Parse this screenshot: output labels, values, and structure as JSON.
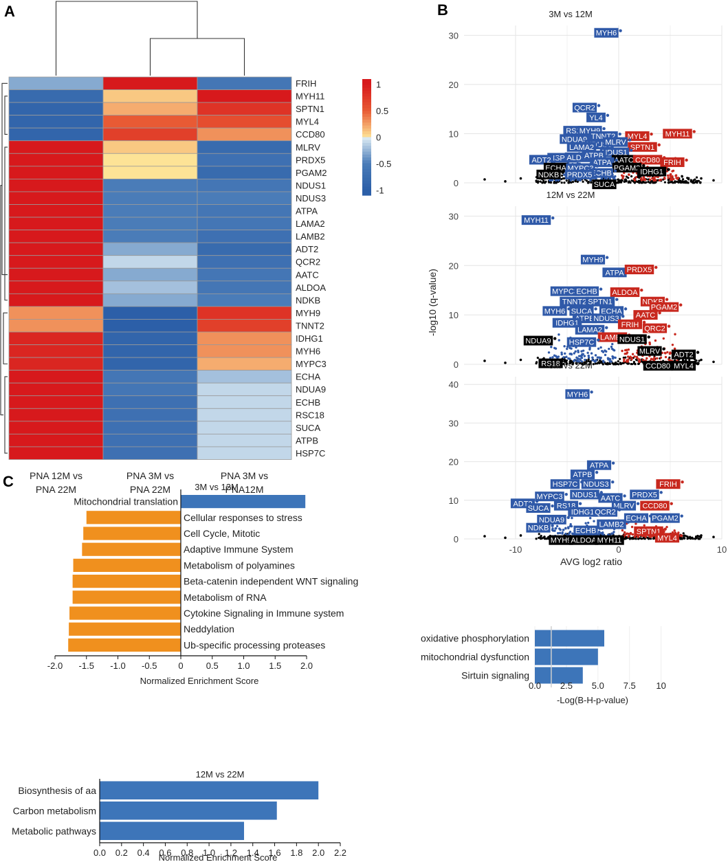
{
  "panel_letters": {
    "a": "A",
    "b": "B",
    "c": "C"
  },
  "colors": {
    "heat_high": "#d7191c",
    "heat_mid": "#ffffbf",
    "heat_low": "#2c5fa8",
    "volcano_up": "#c8281e",
    "volcano_down": "#2f59a8",
    "volcano_ns": "#000000",
    "nes_positive": "#3d75b9",
    "nes_negative": "#f0901e"
  },
  "chart_data": [
    {
      "id": "heatmap",
      "type": "heatmap",
      "title": "",
      "rows": [
        "FRIH",
        "MYH11",
        "SPTN1",
        "MYL4",
        "CCD80",
        "MLRV",
        "PRDX5",
        "PGAM2",
        "NDUS1",
        "NDUS3",
        "ATPA",
        "LAMA2",
        "LAMB2",
        "ADT2",
        "QCR2",
        "AATC",
        "ALDOA",
        "NDKB",
        "MYH9",
        "TNNT2",
        "IDHG1",
        "MYH6",
        "MYPC3",
        "ECHA",
        "NDUA9",
        "ECHB",
        "RSC18",
        "SUCA",
        "ATPB",
        "HSP7C"
      ],
      "columns": [
        {
          "l1": "PNA 12M vs",
          "l2": "PNA 22M"
        },
        {
          "l1": "PNA 3M vs",
          "l2": "PNA 22M"
        },
        {
          "l1": "PNA 3M vs",
          "l2": "PNA12M"
        }
      ],
      "values": [
        [
          -0.3,
          1.0,
          -0.6
        ],
        [
          -0.8,
          0.1,
          1.0
        ],
        [
          -0.9,
          0.2,
          0.8
        ],
        [
          -0.9,
          0.5,
          0.6
        ],
        [
          -0.9,
          0.7,
          0.3
        ],
        [
          1.0,
          0.1,
          -0.8
        ],
        [
          1.0,
          0.0,
          -0.7
        ],
        [
          1.0,
          0.0,
          -0.8
        ],
        [
          1.0,
          -0.5,
          -0.6
        ],
        [
          1.0,
          -0.5,
          -0.5
        ],
        [
          1.0,
          -0.5,
          -0.6
        ],
        [
          1.0,
          -0.5,
          -0.6
        ],
        [
          1.0,
          -0.5,
          -0.7
        ],
        [
          1.0,
          -0.3,
          -0.8
        ],
        [
          1.0,
          -0.1,
          -0.7
        ],
        [
          1.0,
          -0.3,
          -0.6
        ],
        [
          1.0,
          -0.2,
          -0.6
        ],
        [
          1.0,
          -0.3,
          -0.5
        ],
        [
          0.3,
          -1.0,
          0.8
        ],
        [
          0.3,
          -1.0,
          0.7
        ],
        [
          0.9,
          -0.9,
          0.3
        ],
        [
          0.9,
          -0.9,
          0.3
        ],
        [
          0.9,
          -0.9,
          0.2
        ],
        [
          1.0,
          -0.6,
          -0.2
        ],
        [
          1.0,
          -0.6,
          -0.1
        ],
        [
          1.0,
          -0.7,
          -0.1
        ],
        [
          1.0,
          -0.7,
          -0.1
        ],
        [
          1.0,
          -0.7,
          -0.1
        ],
        [
          1.0,
          -0.7,
          -0.1
        ],
        [
          1.0,
          -0.7,
          -0.1
        ]
      ],
      "colorbar": {
        "ticks": [
          "1",
          "0.5",
          "0",
          "-0.5",
          "-1"
        ],
        "tick_values": [
          1,
          0.5,
          0,
          -0.5,
          -1
        ],
        "range": [
          -1.1,
          1.1
        ]
      }
    },
    {
      "id": "volcano",
      "type": "scatter",
      "xlabel": "AVG log2 ratio",
      "ylabel": "-log10 (q-value)",
      "xlim": [
        -15,
        10
      ],
      "x_ticks": [
        -10,
        0,
        10
      ],
      "x_tick_labels": [
        "-10",
        "0",
        "10"
      ],
      "panels": [
        {
          "title": "3M vs 12M",
          "ylim": [
            0,
            32
          ],
          "y_ticks": [
            0,
            10,
            20,
            30
          ],
          "y_tick_labels": [
            "0",
            "10",
            "20",
            "30"
          ],
          "labels": [
            {
              "text": "MYH6",
              "x": -1.2,
              "y": 30.5,
              "c": "down"
            },
            {
              "text": "QCR2",
              "x": -3.3,
              "y": 15.3,
              "c": "down"
            },
            {
              "text": "YL4",
              "x": -2.2,
              "y": 13.3,
              "c": "down"
            },
            {
              "text": "RS18",
              "x": -4.2,
              "y": 10.6,
              "c": "down"
            },
            {
              "text": "MYH9",
              "x": -2.8,
              "y": 10.6,
              "c": "down"
            },
            {
              "text": "TNNT2",
              "x": -1.5,
              "y": 9.5,
              "c": "down"
            },
            {
              "text": "MYL4",
              "x": 1.8,
              "y": 9.5,
              "c": "up"
            },
            {
              "text": "MYH11",
              "x": 5.7,
              "y": 10.0,
              "c": "up"
            },
            {
              "text": "NDUA9",
              "x": -4.3,
              "y": 8.9,
              "c": "down"
            },
            {
              "text": "NDUS3",
              "x": -1.9,
              "y": 7.8,
              "c": "down"
            },
            {
              "text": "MLRV",
              "x": -0.3,
              "y": 8.3,
              "c": "down"
            },
            {
              "text": "LAMA2",
              "x": -3.6,
              "y": 7.3,
              "c": "down"
            },
            {
              "text": "SPTN1",
              "x": 2.3,
              "y": 7.3,
              "c": "up"
            },
            {
              "text": "NDUS1",
              "x": -0.4,
              "y": 6.2,
              "c": "down"
            },
            {
              "text": "HSP7C",
              "x": -5.5,
              "y": 5.1,
              "c": "down"
            },
            {
              "text": "ALDOA",
              "x": -3.8,
              "y": 5.2,
              "c": "down"
            },
            {
              "text": "ATPB",
              "x": -2.4,
              "y": 5.6,
              "c": "down"
            },
            {
              "text": "AATC",
              "x": 0.5,
              "y": 4.7,
              "c": "ns"
            },
            {
              "text": "CCD80",
              "x": 2.8,
              "y": 4.7,
              "c": "up"
            },
            {
              "text": "ADT2",
              "x": -7.5,
              "y": 4.7,
              "c": "down"
            },
            {
              "text": "ATPA",
              "x": -1.6,
              "y": 4.2,
              "c": "down"
            },
            {
              "text": "FRIH",
              "x": 5.2,
              "y": 4.2,
              "c": "up"
            },
            {
              "text": "ECHA",
              "x": -6.1,
              "y": 3.1,
              "c": "ns"
            },
            {
              "text": "MYPC3",
              "x": -3.7,
              "y": 3.0,
              "c": "down"
            },
            {
              "text": "PGAM2",
              "x": 0.8,
              "y": 3.1,
              "c": "ns"
            },
            {
              "text": "ECHB",
              "x": -1.7,
              "y": 2.0,
              "c": "down"
            },
            {
              "text": "IDHG1",
              "x": 3.2,
              "y": 2.3,
              "c": "ns"
            },
            {
              "text": "NDKB",
              "x": -6.8,
              "y": 1.7,
              "c": "ns"
            },
            {
              "text": "PRDX5",
              "x": -3.8,
              "y": 1.7,
              "c": "down"
            },
            {
              "text": "SUCA",
              "x": -1.4,
              "y": -0.3,
              "c": "ns"
            }
          ]
        },
        {
          "title": "12M vs 22M",
          "ylim": [
            0,
            32
          ],
          "y_ticks": [
            0,
            10,
            20,
            30
          ],
          "y_tick_labels": [
            "0",
            "10",
            "20",
            "30"
          ],
          "labels": [
            {
              "text": "MYH11",
              "x": -8.0,
              "y": 29.2,
              "c": "down"
            },
            {
              "text": "MYH9",
              "x": -2.5,
              "y": 21.2,
              "c": "down"
            },
            {
              "text": "ATPA",
              "x": -0.4,
              "y": 18.6,
              "c": "down"
            },
            {
              "text": "PRDX5",
              "x": 2.0,
              "y": 19.2,
              "c": "up"
            },
            {
              "text": "MYPC3",
              "x": -5.2,
              "y": 14.8,
              "c": "down"
            },
            {
              "text": "ECHB",
              "x": -3.1,
              "y": 14.8,
              "c": "down"
            },
            {
              "text": "ALDOA",
              "x": 0.6,
              "y": 14.6,
              "c": "up"
            },
            {
              "text": "TNNT2",
              "x": -4.3,
              "y": 12.7,
              "c": "down"
            },
            {
              "text": "SPTN1",
              "x": -1.8,
              "y": 12.7,
              "c": "down"
            },
            {
              "text": "NDKB",
              "x": 3.3,
              "y": 12.7,
              "c": "up"
            },
            {
              "text": "PGAM2",
              "x": 4.4,
              "y": 11.6,
              "c": "up"
            },
            {
              "text": "MYH6",
              "x": -6.2,
              "y": 10.8,
              "c": "down"
            },
            {
              "text": "SUCA",
              "x": -3.6,
              "y": 10.8,
              "c": "down"
            },
            {
              "text": "ECHA",
              "x": -0.7,
              "y": 10.8,
              "c": "down"
            },
            {
              "text": "AATC",
              "x": 2.6,
              "y": 10.0,
              "c": "up"
            },
            {
              "text": "ATPB",
              "x": -3.3,
              "y": 9.3,
              "c": "down"
            },
            {
              "text": "NDUS3",
              "x": -1.2,
              "y": 9.3,
              "c": "down"
            },
            {
              "text": "IDHG1",
              "x": -5.0,
              "y": 8.4,
              "c": "down"
            },
            {
              "text": "FRIH",
              "x": 1.1,
              "y": 8.1,
              "c": "up"
            },
            {
              "text": "QRC2",
              "x": 3.5,
              "y": 7.3,
              "c": "up"
            },
            {
              "text": "LAMA2",
              "x": -2.8,
              "y": 7.0,
              "c": "down"
            },
            {
              "text": "LAMB2",
              "x": -0.6,
              "y": 5.5,
              "c": "up"
            },
            {
              "text": "NDUA9",
              "x": -7.8,
              "y": 4.8,
              "c": "ns"
            },
            {
              "text": "HSP7C",
              "x": -3.6,
              "y": 4.5,
              "c": "down"
            },
            {
              "text": "NDUS1",
              "x": 1.3,
              "y": 5.1,
              "c": "ns"
            },
            {
              "text": "MLRV",
              "x": 3.0,
              "y": 2.7,
              "c": "ns"
            },
            {
              "text": "ADT2",
              "x": 6.3,
              "y": 2.0,
              "c": "ns"
            },
            {
              "text": "RS18",
              "x": -6.6,
              "y": 0.2,
              "c": "ns"
            },
            {
              "text": "CCD80",
              "x": 3.8,
              "y": -0.3,
              "c": "ns"
            },
            {
              "text": "MYL4",
              "x": 6.3,
              "y": -0.3,
              "c": "ns"
            }
          ]
        },
        {
          "title": "3M vs 22M",
          "ylim": [
            0,
            42
          ],
          "y_ticks": [
            0,
            10,
            20,
            30,
            40
          ],
          "y_tick_labels": [
            "0",
            "10",
            "20",
            "30",
            "40"
          ],
          "labels": [
            {
              "text": "MYH6",
              "x": -4.0,
              "y": 37.5,
              "c": "down"
            },
            {
              "text": "ATPA",
              "x": -1.9,
              "y": 19.1,
              "c": "down"
            },
            {
              "text": "ATPB",
              "x": -3.5,
              "y": 16.7,
              "c": "down"
            },
            {
              "text": "HSP7C",
              "x": -5.2,
              "y": 14.2,
              "c": "down"
            },
            {
              "text": "NDUS3",
              "x": -2.2,
              "y": 14.2,
              "c": "down"
            },
            {
              "text": "FRIH",
              "x": 4.8,
              "y": 14.2,
              "c": "up"
            },
            {
              "text": "NDUS1",
              "x": -3.3,
              "y": 11.5,
              "c": "down"
            },
            {
              "text": "PRDX5",
              "x": 2.5,
              "y": 11.5,
              "c": "down"
            },
            {
              "text": "MYPC3",
              "x": -6.7,
              "y": 11.0,
              "c": "down"
            },
            {
              "text": "AATC",
              "x": -0.8,
              "y": 10.6,
              "c": "down"
            },
            {
              "text": "ADT2",
              "x": -9.3,
              "y": 9.2,
              "c": "down"
            },
            {
              "text": "RS18",
              "x": -5.1,
              "y": 8.6,
              "c": "down"
            },
            {
              "text": "MLRV",
              "x": 0.5,
              "y": 8.6,
              "c": "down"
            },
            {
              "text": "CCD80",
              "x": 3.5,
              "y": 8.6,
              "c": "up"
            },
            {
              "text": "SUCA",
              "x": -7.8,
              "y": 8.0,
              "c": "down"
            },
            {
              "text": "IDHG1",
              "x": -3.5,
              "y": 7.0,
              "c": "down"
            },
            {
              "text": "QCR2",
              "x": -1.3,
              "y": 7.0,
              "c": "down"
            },
            {
              "text": "NDUA9",
              "x": -6.5,
              "y": 5.0,
              "c": "down"
            },
            {
              "text": "ECHA",
              "x": 1.7,
              "y": 5.4,
              "c": "down"
            },
            {
              "text": "PGAM2",
              "x": 4.5,
              "y": 5.4,
              "c": "down"
            },
            {
              "text": "NDKB",
              "x": -7.8,
              "y": 2.9,
              "c": "down"
            },
            {
              "text": "LAMB2",
              "x": -0.7,
              "y": 3.8,
              "c": "down"
            },
            {
              "text": "ECHB",
              "x": -3.2,
              "y": 2.2,
              "c": "down"
            },
            {
              "text": "SPTN1",
              "x": 2.9,
              "y": 2.0,
              "c": "up"
            },
            {
              "text": "MYL4",
              "x": 4.7,
              "y": 0.3,
              "c": "up"
            },
            {
              "text": "MYH9",
              "x": -5.6,
              "y": -0.3,
              "c": "ns"
            },
            {
              "text": "ALDOA",
              "x": -3.4,
              "y": -0.3,
              "c": "ns"
            },
            {
              "text": "MYH11",
              "x": -0.9,
              "y": -0.3,
              "c": "ns"
            }
          ]
        }
      ]
    },
    {
      "id": "nes_3m_12m",
      "type": "bar",
      "orientation": "horizontal",
      "title": "3M vs 12M",
      "xlabel": "Normalized Enrichment Score",
      "xlim": [
        -2.0,
        2.0
      ],
      "x_ticks": [
        -2,
        -1.5,
        -1,
        -0.5,
        0,
        0.5,
        1,
        1.5,
        2
      ],
      "x_tick_labels": [
        "-2.0",
        "-1.5",
        "-1.0",
        "-0.5",
        "0",
        "0.5",
        "1.0",
        "1.5",
        "2.0"
      ],
      "categories": [
        "Mitochondrial translation",
        "Cellular responses to stress",
        "Cell Cycle, Mitotic",
        "Adaptive Immune System",
        "Metabolism of polyamines",
        "Beta-catenin independent WNT signaling",
        "Metabolism of RNA",
        "Cytokine Signaling in Immune system",
        "Neddylation",
        "Ub-specific processing proteases"
      ],
      "values": [
        1.98,
        -1.5,
        -1.55,
        -1.57,
        -1.71,
        -1.72,
        -1.72,
        -1.77,
        -1.78,
        -1.79
      ]
    },
    {
      "id": "ipa",
      "type": "bar",
      "orientation": "horizontal",
      "title": "",
      "xlabel": "-Log(B-H-p-value)",
      "xlim": [
        0,
        11
      ],
      "x_ticks": [
        0,
        2.5,
        5,
        7.5,
        10
      ],
      "x_tick_labels": [
        "0.0",
        "2.5",
        "5.0",
        "7.5",
        "10"
      ],
      "threshold": 1.3,
      "categories": [
        "oxidative phosphorylation",
        "mitochondrial dysfunction",
        "Sirtuin signaling"
      ],
      "values": [
        5.5,
        5.0,
        3.8
      ]
    },
    {
      "id": "nes_12m_22m",
      "type": "bar",
      "orientation": "horizontal",
      "title": "12M vs 22M",
      "xlabel": "Normalized Enrichment Score",
      "xlim": [
        0,
        2.2
      ],
      "x_ticks": [
        0,
        0.2,
        0.4,
        0.6,
        0.8,
        1.0,
        1.2,
        1.4,
        1.6,
        1.8,
        2.0,
        2.2
      ],
      "x_tick_labels": [
        "0.0",
        "0.2",
        "0.4",
        "0.6",
        "0.8",
        "1.0",
        "1.2",
        "1.4",
        "1.6",
        "1.8",
        "2.0",
        "2.2"
      ],
      "categories": [
        "Biosynthesis of aa",
        "Carbon metabolism",
        "Metabolic pathways"
      ],
      "values": [
        2.0,
        1.62,
        1.32
      ]
    }
  ]
}
